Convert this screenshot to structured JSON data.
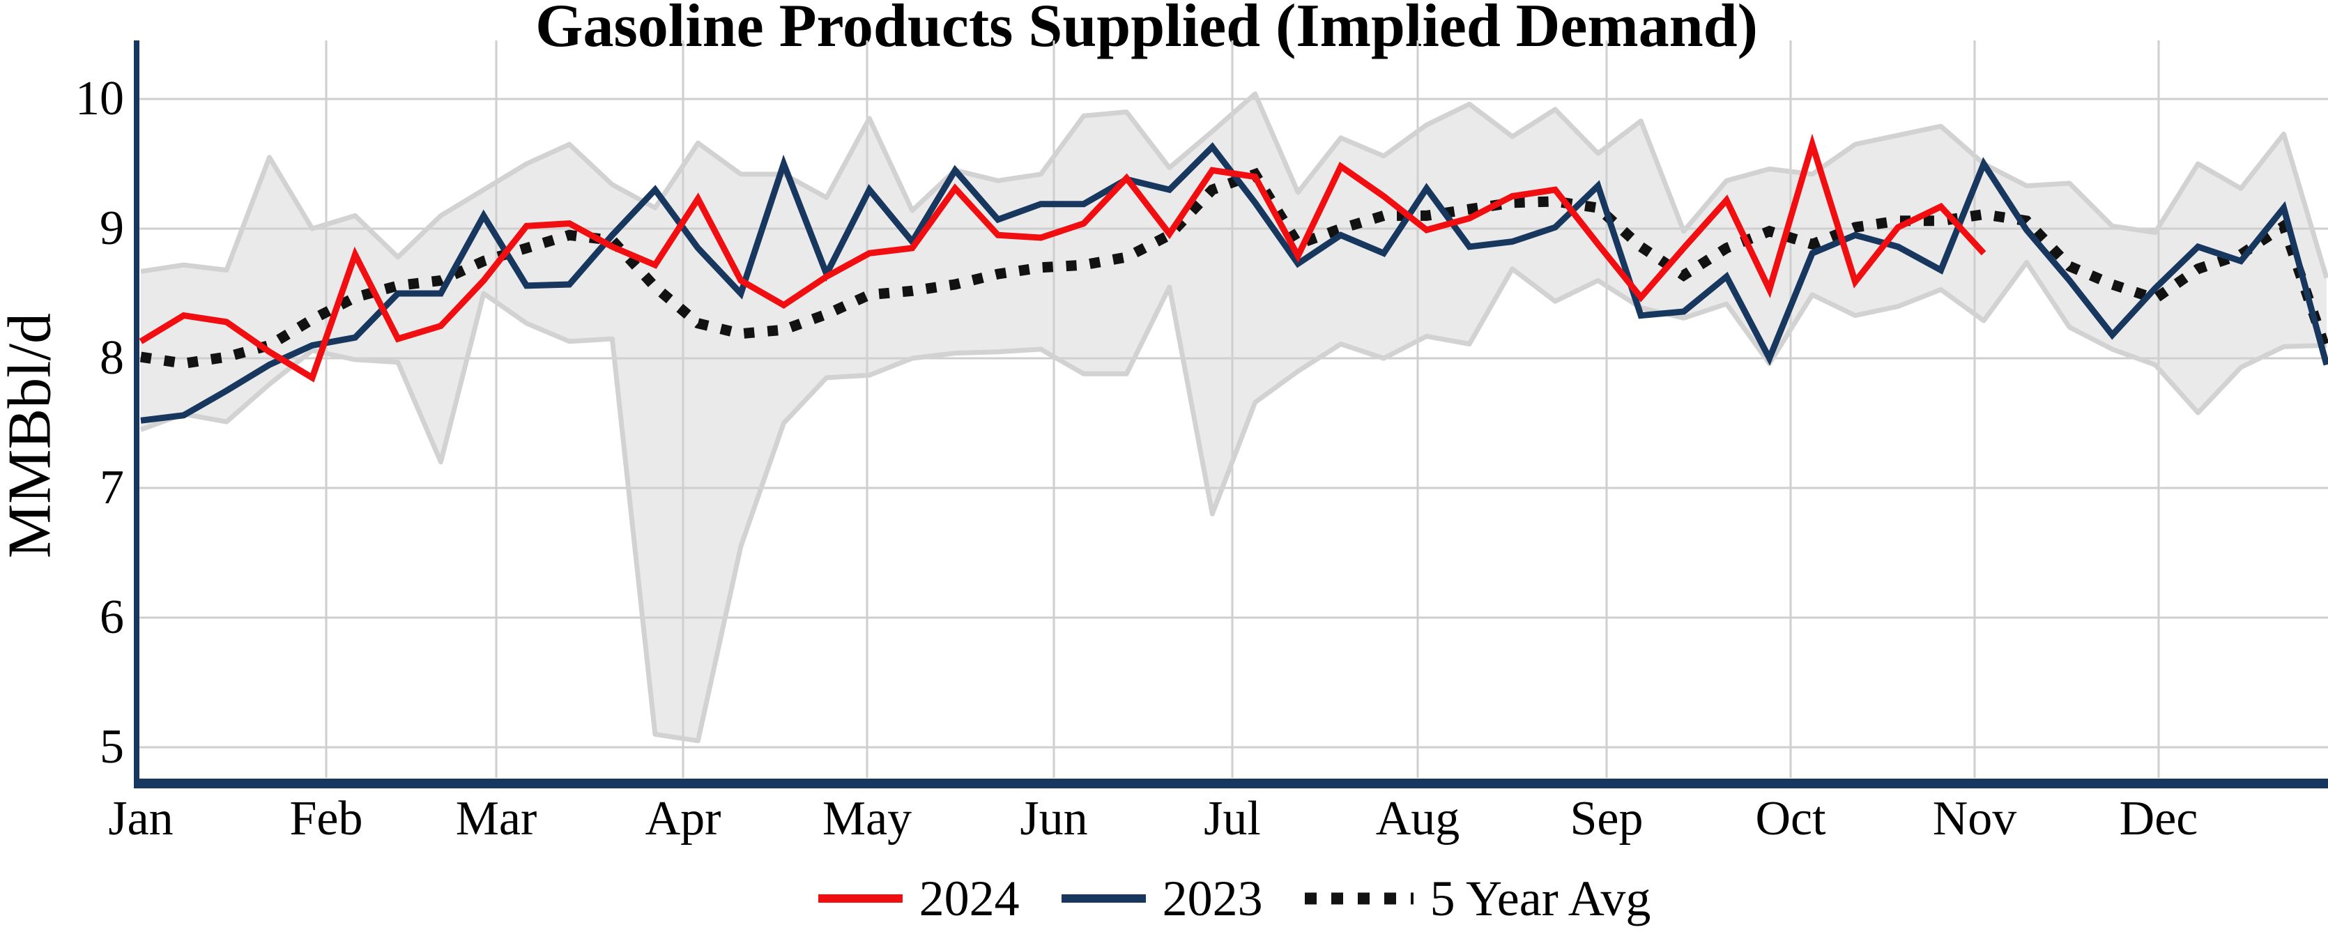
{
  "chart_data": {
    "type": "line",
    "title": "Gasoline Products Supplied (Implied Demand)",
    "xlabel": "",
    "ylabel": "MMBbl/d",
    "ylim": [
      4.7,
      10.45
    ],
    "grid": true,
    "legend_position": "bottom-center",
    "y_ticks": [
      10,
      9,
      8,
      7,
      6,
      5
    ],
    "x_tick_labels": [
      "Jan",
      "Feb",
      "Mar",
      "Apr",
      "May",
      "Jun",
      "Jul",
      "Aug",
      "Sep",
      "Oct",
      "Nov",
      "Dec"
    ],
    "x_unit": "week-of-year",
    "weeks": 52,
    "series": [
      {
        "name": "2024",
        "color": "#f10e11",
        "style": "solid",
        "start_week": 1,
        "values": [
          8.13,
          8.33,
          8.28,
          8.05,
          7.85,
          8.8,
          8.15,
          8.25,
          8.6,
          9.02,
          9.04,
          8.86,
          8.72,
          9.23,
          8.6,
          8.41,
          8.63,
          8.81,
          8.85,
          9.31,
          8.95,
          8.93,
          9.04,
          9.39,
          8.96,
          9.45,
          9.4,
          8.79,
          9.48,
          9.25,
          8.99,
          9.08,
          9.25,
          9.3,
          8.88,
          8.47,
          8.85,
          9.22,
          8.53,
          9.65,
          8.59,
          9.01,
          9.17,
          8.81
        ]
      },
      {
        "name": "2023",
        "color": "#17375e",
        "style": "solid",
        "start_week": 1,
        "values": [
          7.52,
          7.56,
          7.75,
          7.95,
          8.1,
          8.16,
          8.5,
          8.5,
          9.1,
          8.56,
          8.57,
          8.95,
          9.3,
          8.85,
          8.5,
          9.5,
          8.65,
          9.3,
          8.9,
          9.45,
          9.07,
          9.19,
          9.19,
          9.38,
          9.3,
          9.63,
          9.2,
          8.73,
          8.95,
          8.81,
          9.31,
          8.86,
          8.9,
          9.01,
          9.33,
          8.33,
          8.36,
          8.63,
          8.0,
          8.81,
          8.95,
          8.86,
          8.68,
          9.5,
          8.99,
          8.6,
          8.18,
          8.54,
          8.86,
          8.75,
          9.16,
          7.95
        ]
      },
      {
        "name": "5 Year Avg",
        "color": "#121212",
        "style": "dotted",
        "start_week": 1,
        "values": [
          8.01,
          7.96,
          8.01,
          8.1,
          8.3,
          8.47,
          8.56,
          8.6,
          8.75,
          8.85,
          8.95,
          8.91,
          8.55,
          8.27,
          8.19,
          8.22,
          8.34,
          8.49,
          8.52,
          8.57,
          8.65,
          8.7,
          8.72,
          8.78,
          8.95,
          9.3,
          9.42,
          8.88,
          9.0,
          9.1,
          9.1,
          9.15,
          9.2,
          9.21,
          9.16,
          8.86,
          8.64,
          8.85,
          8.98,
          8.88,
          9.01,
          9.06,
          9.06,
          9.11,
          9.06,
          8.71,
          8.57,
          8.46,
          8.69,
          8.8,
          9.02,
          8.05
        ]
      }
    ],
    "band": {
      "name": "5-year range",
      "fill": "#eaeaea",
      "edge": "#d2d2d2",
      "top": [
        8.67,
        8.72,
        8.68,
        9.55,
        9.0,
        9.1,
        8.78,
        9.1,
        9.3,
        9.5,
        9.65,
        9.34,
        9.16,
        9.66,
        9.42,
        9.42,
        9.24,
        9.85,
        9.14,
        9.45,
        9.37,
        9.42,
        9.87,
        9.9,
        9.47,
        9.75,
        10.04,
        9.28,
        9.7,
        9.56,
        9.8,
        9.96,
        9.71,
        9.92,
        9.58,
        9.83,
        8.98,
        9.37,
        9.46,
        9.42,
        9.65,
        9.72,
        9.79,
        9.5,
        9.33,
        9.35,
        9.02,
        8.97,
        9.5,
        9.31,
        9.73,
        8.62
      ],
      "bottom": [
        7.45,
        7.57,
        7.51,
        7.8,
        8.06,
        7.99,
        7.97,
        7.2,
        8.5,
        8.27,
        8.13,
        8.15,
        5.1,
        5.05,
        6.55,
        7.5,
        7.85,
        7.87,
        8.0,
        8.04,
        8.05,
        8.07,
        7.88,
        7.88,
        8.55,
        6.8,
        7.66,
        7.9,
        8.11,
        8.0,
        8.17,
        8.11,
        8.69,
        8.44,
        8.6,
        8.39,
        8.31,
        8.42,
        7.96,
        8.49,
        8.33,
        8.4,
        8.53,
        8.29,
        8.74,
        8.24,
        8.07,
        7.95,
        7.58,
        7.93,
        8.09,
        8.1
      ]
    },
    "colors": {
      "axis_spine": "#17375e",
      "gridline": "#cfcfcf",
      "background": "#ffffff"
    }
  }
}
